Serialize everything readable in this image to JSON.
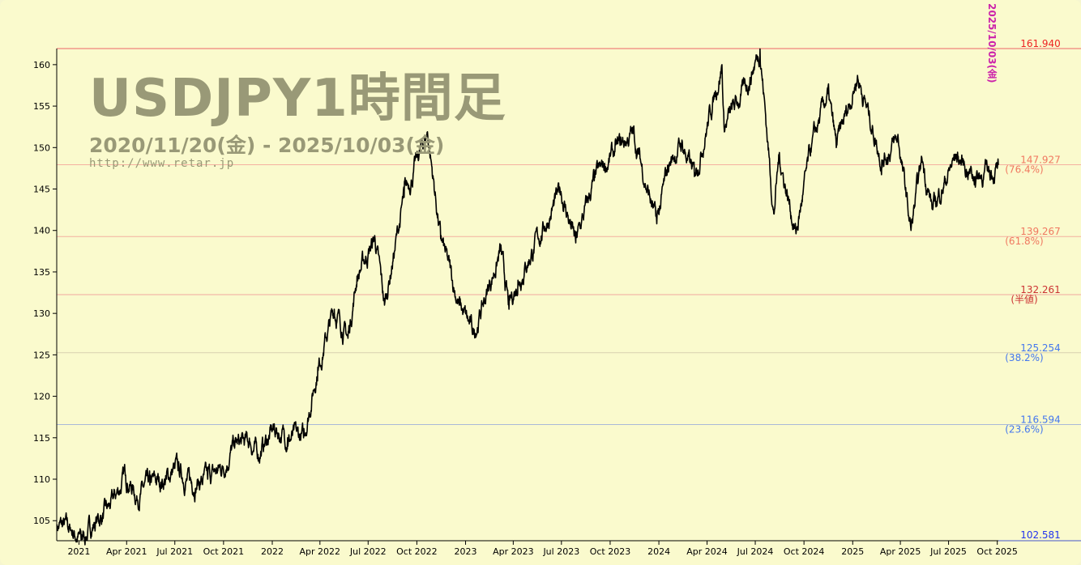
{
  "chart_data": {
    "type": "line",
    "title": "USDJPY1時間足",
    "subtitle": "2020/11/20(金) - 2025/10/03(金)",
    "watermark_url": "http://www.retar.jp",
    "latest_stamp": "2025/10/03(金)",
    "xlabel": "",
    "ylabel": "",
    "xlim": [
      "2020-11-20",
      "2025-10-03"
    ],
    "ylim": [
      102.581,
      161.94
    ],
    "x_ticks": [
      {
        "date": "2021-01-01",
        "label": "2021"
      },
      {
        "date": "2021-04-01",
        "label": "Apr 2021"
      },
      {
        "date": "2021-07-01",
        "label": "Jul 2021"
      },
      {
        "date": "2021-10-01",
        "label": "Oct 2021"
      },
      {
        "date": "2022-01-01",
        "label": "2022"
      },
      {
        "date": "2022-04-01",
        "label": "Apr 2022"
      },
      {
        "date": "2022-07-01",
        "label": "Jul 2022"
      },
      {
        "date": "2022-10-01",
        "label": "Oct 2022"
      },
      {
        "date": "2023-01-01",
        "label": "2023"
      },
      {
        "date": "2023-04-01",
        "label": "Apr 2023"
      },
      {
        "date": "2023-07-01",
        "label": "Jul 2023"
      },
      {
        "date": "2023-10-01",
        "label": "Oct 2023"
      },
      {
        "date": "2024-01-01",
        "label": "2024"
      },
      {
        "date": "2024-04-01",
        "label": "Apr 2024"
      },
      {
        "date": "2024-07-01",
        "label": "Jul 2024"
      },
      {
        "date": "2024-10-01",
        "label": "Oct 2024"
      },
      {
        "date": "2025-01-01",
        "label": "2025"
      },
      {
        "date": "2025-04-01",
        "label": "Apr 2025"
      },
      {
        "date": "2025-07-01",
        "label": "Jul 2025"
      },
      {
        "date": "2025-10-01",
        "label": "Oct 2025"
      }
    ],
    "y_ticks": [
      105,
      110,
      115,
      120,
      125,
      130,
      135,
      140,
      145,
      150,
      155,
      160
    ],
    "levels": [
      {
        "value": 161.94,
        "label": "161.940",
        "sub": "",
        "color": "#ee2222",
        "line": "#ee6666"
      },
      {
        "value": 147.927,
        "label": "147.927",
        "sub": "(76.4%)",
        "color": "#f07860",
        "line": "#f4b0a0"
      },
      {
        "value": 139.267,
        "label": "139.267",
        "sub": "(61.8%)",
        "color": "#f07860",
        "line": "#f4b0a0"
      },
      {
        "value": 132.261,
        "label": "132.261",
        "sub": "(半値)",
        "color": "#cc3333",
        "line": "#f0a8a0"
      },
      {
        "value": 125.254,
        "label": "125.254",
        "sub": "(38.2%)",
        "color": "#4477ee",
        "line": "#d8d0b0"
      },
      {
        "value": 116.594,
        "label": "116.594",
        "sub": "(23.6%)",
        "color": "#4477ee",
        "line": "#a8b8d8"
      },
      {
        "value": 102.581,
        "label": "102.581",
        "sub": "",
        "color": "#2233ee",
        "line": "#4455cc"
      }
    ],
    "series": [
      {
        "color": "#000000",
        "points": [
          [
            "2020-11-20",
            104.5
          ],
          [
            "2020-12-15",
            104.0
          ],
          [
            "2021-01-05",
            102.7
          ],
          [
            "2021-02-01",
            104.8
          ],
          [
            "2021-03-01",
            106.5
          ],
          [
            "2021-03-30",
            110.5
          ],
          [
            "2021-04-20",
            108.0
          ],
          [
            "2021-05-15",
            109.3
          ],
          [
            "2021-06-15",
            110.0
          ],
          [
            "2021-07-01",
            111.3
          ],
          [
            "2021-08-01",
            109.5
          ],
          [
            "2021-09-01",
            110.0
          ],
          [
            "2021-09-30",
            111.5
          ],
          [
            "2021-10-20",
            114.0
          ],
          [
            "2021-11-20",
            114.5
          ],
          [
            "2021-12-05",
            113.0
          ],
          [
            "2022-01-04",
            116.0
          ],
          [
            "2022-01-30",
            115.0
          ],
          [
            "2022-03-01",
            115.0
          ],
          [
            "2022-03-28",
            123.5
          ],
          [
            "2022-04-28",
            130.5
          ],
          [
            "2022-05-24",
            127.0
          ],
          [
            "2022-06-10",
            134.5
          ],
          [
            "2022-07-14",
            139.0
          ],
          [
            "2022-08-01",
            131.0
          ],
          [
            "2022-09-07",
            144.0
          ],
          [
            "2022-10-21",
            151.9
          ],
          [
            "2022-11-15",
            139.0
          ],
          [
            "2022-12-20",
            131.0
          ],
          [
            "2023-01-16",
            127.5
          ],
          [
            "2023-03-08",
            137.5
          ],
          [
            "2023-03-24",
            130.5
          ],
          [
            "2023-04-10",
            134.0
          ],
          [
            "2023-05-30",
            140.5
          ],
          [
            "2023-06-30",
            144.7
          ],
          [
            "2023-07-28",
            138.5
          ],
          [
            "2023-09-01",
            146.0
          ],
          [
            "2023-10-10",
            149.5
          ],
          [
            "2023-11-13",
            151.7
          ],
          [
            "2023-12-28",
            140.8
          ],
          [
            "2024-01-20",
            148.0
          ],
          [
            "2024-02-13",
            150.5
          ],
          [
            "2024-03-08",
            146.5
          ],
          [
            "2024-04-29",
            160.0
          ],
          [
            "2024-05-03",
            152.5
          ],
          [
            "2024-06-15",
            157.5
          ],
          [
            "2024-07-10",
            161.9
          ],
          [
            "2024-08-05",
            142.0
          ],
          [
            "2024-08-15",
            149.0
          ],
          [
            "2024-09-16",
            139.6
          ],
          [
            "2024-10-15",
            150.0
          ],
          [
            "2024-11-15",
            156.5
          ],
          [
            "2024-12-01",
            150.0
          ],
          [
            "2025-01-10",
            158.7
          ],
          [
            "2025-02-25",
            148.5
          ],
          [
            "2025-03-28",
            151.0
          ],
          [
            "2025-04-21",
            140.0
          ],
          [
            "2025-05-12",
            148.5
          ],
          [
            "2025-06-01",
            142.5
          ],
          [
            "2025-07-15",
            149.0
          ],
          [
            "2025-08-20",
            146.5
          ],
          [
            "2025-10-01",
            147.5
          ],
          [
            "2025-10-03",
            147.9
          ]
        ]
      }
    ]
  }
}
